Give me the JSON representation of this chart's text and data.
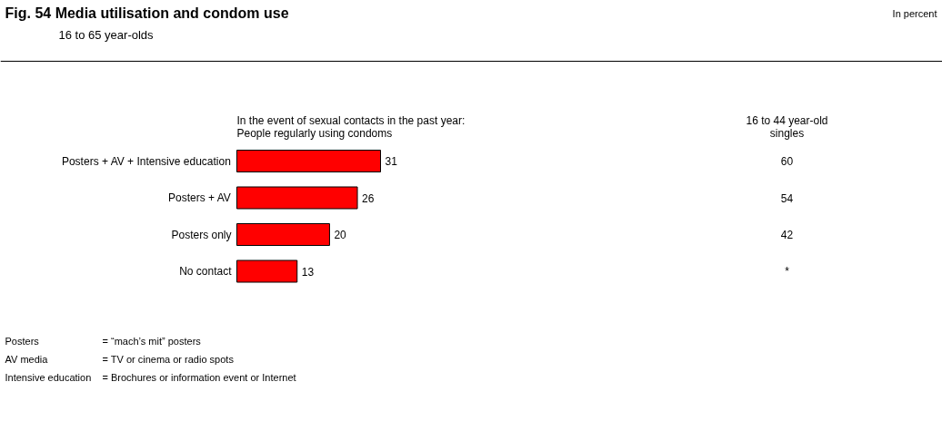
{
  "chart_data": {
    "type": "bar",
    "orientation": "horizontal",
    "title": "Fig. 54     Media utilisation and condom use",
    "subtitle": "16 to 65 year-olds",
    "categories": [
      "Posters + AV + Intensive education",
      "Posters + AV",
      "Posters only",
      "No contact"
    ],
    "values": [
      31,
      26,
      20,
      13
    ],
    "color": "#ff0000",
    "data_labels": true,
    "grid": false,
    "annotations": [
      "In percent",
      "In the event of sexual contacts in the past year:\nPeople regularly using condoms",
      "16 to 44 year-old\nsingles",
      "60",
      "54",
      "42",
      "*",
      "Posters",
      "= “mach’s mit” posters",
      "AV media",
      "= TV or cinema or radio spots",
      "Intensive education",
      "= Brochures or information event or Internet"
    ]
  }
}
